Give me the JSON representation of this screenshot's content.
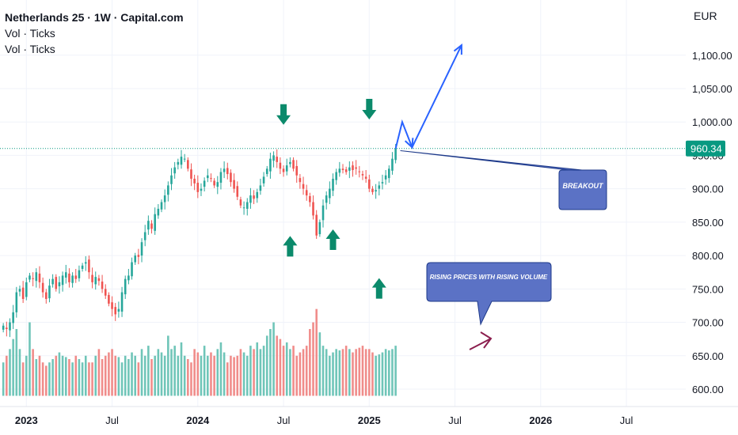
{
  "legend": {
    "title": "Netherlands 25 · 1W · Capital.com",
    "vol1": "Vol · Ticks",
    "vol2": "Vol · Ticks"
  },
  "currency": "EUR",
  "last_price_label": "960.34",
  "callouts": {
    "breakout": "BREAKOUT",
    "volume": "RISING PRICES WITH RISING VOLUME"
  },
  "colors": {
    "up": "#26a69a",
    "down": "#ef5350",
    "vol_up": "#6fc5b8",
    "vol_down": "#f08c8a",
    "arrow": "#0b8a6b",
    "projection": "#2962ff",
    "callout_fill": "#5b72c5",
    "callout_stroke": "#1e3a8a",
    "volume_arrow": "#8b1e4e",
    "price_tag": "#089981"
  },
  "chart_data": {
    "type": "candlestick",
    "title": "Netherlands 25 · 1W · Capital.com",
    "ylabel": "EUR",
    "ylim": [
      580,
      1130
    ],
    "y_ticks": [
      600,
      650,
      700,
      750,
      800,
      850,
      900,
      950,
      1000,
      1050,
      1100
    ],
    "y_tick_labels": [
      "600.00",
      "650.00",
      "700.00",
      "750.00",
      "800.00",
      "850.00",
      "900.00",
      "950.00",
      "1,000.00",
      "1,050.00",
      "1,100.00"
    ],
    "x_ticks": [
      {
        "label": "2023",
        "week": 0
      },
      {
        "label": "Jul",
        "week": 26
      },
      {
        "label": "2024",
        "week": 52
      },
      {
        "label": "Jul",
        "week": 78
      },
      {
        "label": "2025",
        "week": 104
      },
      {
        "label": "Jul",
        "week": 130
      },
      {
        "label": "2026",
        "week": 156
      },
      {
        "label": "Jul",
        "week": 182
      }
    ],
    "x_range_weeks": [
      -8,
      200
    ],
    "start_week": -7,
    "last_price": 960.34,
    "weekly_closes": [
      695,
      690,
      700,
      715,
      745,
      750,
      735,
      760,
      770,
      765,
      775,
      760,
      745,
      735,
      755,
      765,
      750,
      760,
      770,
      775,
      760,
      770,
      765,
      778,
      785,
      790,
      775,
      760,
      768,
      762,
      750,
      740,
      728,
      720,
      712,
      720,
      745,
      765,
      770,
      790,
      800,
      798,
      820,
      835,
      852,
      840,
      862,
      870,
      880,
      890,
      905,
      920,
      932,
      940,
      948,
      945,
      930,
      915,
      908,
      895,
      900,
      912,
      920,
      915,
      905,
      910,
      925,
      930,
      922,
      910,
      900,
      888,
      875,
      872,
      880,
      890,
      885,
      895,
      905,
      918,
      930,
      945,
      950,
      940,
      930,
      925,
      935,
      940,
      930,
      920,
      910,
      900,
      890,
      880,
      860,
      830,
      850,
      875,
      890,
      900,
      915,
      925,
      930,
      928,
      925,
      932,
      928,
      930,
      925,
      920,
      915,
      900,
      895,
      898,
      905,
      910,
      920,
      930,
      945,
      960
    ],
    "weekly_volumes": [
      640,
      650,
      660,
      675,
      690,
      660,
      640,
      650,
      700,
      660,
      645,
      650,
      640,
      635,
      640,
      645,
      650,
      655,
      650,
      648,
      645,
      640,
      650,
      645,
      640,
      650,
      640,
      640,
      650,
      660,
      645,
      650,
      655,
      660,
      650,
      648,
      640,
      650,
      645,
      655,
      650,
      640,
      660,
      650,
      665,
      645,
      650,
      660,
      655,
      650,
      680,
      660,
      665,
      650,
      670,
      650,
      645,
      640,
      660,
      655,
      650,
      665,
      650,
      655,
      650,
      660,
      670,
      655,
      640,
      650,
      648,
      650,
      660,
      655,
      650,
      665,
      660,
      670,
      660,
      665,
      680,
      690,
      700,
      680,
      675,
      665,
      670,
      660,
      665,
      650,
      655,
      660,
      665,
      690,
      700,
      720,
      685,
      665,
      660,
      650,
      655,
      660,
      658,
      660,
      665,
      660,
      655,
      660,
      662,
      665,
      660,
      660,
      655,
      650,
      652,
      655,
      660,
      658,
      660,
      665
    ],
    "annotations": [
      {
        "type": "down_arrow",
        "week": 78,
        "price": 1010
      },
      {
        "type": "down_arrow",
        "week": 104,
        "price": 1018
      },
      {
        "type": "up_arrow",
        "week": 80,
        "price": 815
      },
      {
        "type": "up_arrow",
        "week": 93,
        "price": 825
      },
      {
        "type": "up_arrow",
        "week": 107,
        "price": 752
      },
      {
        "type": "horizontal_line",
        "price": 960.34
      },
      {
        "type": "projection_path",
        "points": [
          [
            112,
            960
          ],
          [
            114,
            1000
          ],
          [
            117,
            962
          ],
          [
            132,
            1115
          ]
        ]
      }
    ]
  }
}
